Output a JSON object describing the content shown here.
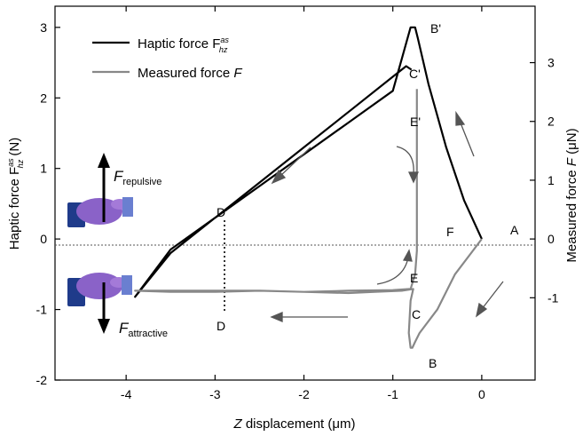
{
  "chart_data": {
    "type": "line",
    "xlabel_var": "Z",
    "xlabel_rest": " displacement (μm)",
    "ylabel_left": "Haptic force F",
    "ylabel_left_sup": "as",
    "ylabel_left_sub": "hz",
    "ylabel_left_unit": " (N)",
    "ylabel_right_pre": "Measured force ",
    "ylabel_right_var": "F",
    "ylabel_right_unit": " (μN)",
    "xlim": [
      -4.8,
      0.6
    ],
    "ylim_left": [
      -2,
      3.3
    ],
    "ylim_right": [
      -2.4,
      3.96
    ],
    "xticks": [
      -4,
      -3,
      -2,
      -1,
      0
    ],
    "yticks_left": [
      -2,
      -1,
      0,
      1,
      2,
      3
    ],
    "yticks_right": [
      -1,
      0,
      1,
      2,
      3
    ],
    "legend": {
      "haptic_label": "Haptic force F",
      "haptic_sup": "as",
      "haptic_sub": "hz",
      "measured_label": "Measured force ",
      "measured_var": "F",
      "placement": "top-left"
    },
    "series": [
      {
        "name": "Haptic force",
        "color": "#000000",
        "axis": "left",
        "x": [
          0,
          -0.2,
          -0.4,
          -0.6,
          -0.72,
          -0.75,
          -0.8,
          -1.0,
          -1.5,
          -2.0,
          -2.5,
          -3.0,
          -3.5,
          -3.9,
          -3.5,
          -3.0,
          -2.5,
          -2.0,
          -1.5,
          -1.0,
          -0.85,
          -0.79
        ],
        "y": [
          0,
          0.55,
          1.3,
          2.2,
          2.85,
          3.0,
          3.0,
          2.1,
          1.65,
          1.2,
          0.75,
          0.3,
          -0.15,
          -0.82,
          -0.2,
          0.3,
          0.8,
          1.3,
          1.8,
          2.3,
          2.45,
          2.4
        ]
      },
      {
        "name": "Measured force",
        "color": "#888888",
        "axis": "right",
        "x": [
          0,
          -0.1,
          -0.3,
          -0.5,
          -0.7,
          -0.75,
          -0.78,
          -0.8,
          -0.82,
          -0.8,
          -0.77,
          -0.9,
          -1.2,
          -1.5,
          -2.0,
          -2.5,
          -3.0,
          -3.5,
          -3.9,
          -3.5,
          -3.0,
          -2.5,
          -2.0,
          -1.5,
          -1.0,
          -0.8,
          -0.75,
          -0.73,
          -0.73
        ],
        "y": [
          0,
          -0.2,
          -0.6,
          -1.2,
          -1.6,
          -1.75,
          -1.85,
          -1.85,
          -1.6,
          -1.05,
          -0.85,
          -0.88,
          -0.9,
          -0.92,
          -0.9,
          -0.88,
          -0.88,
          -0.88,
          -0.88,
          -0.9,
          -0.9,
          -0.88,
          -0.9,
          -0.88,
          -0.87,
          -0.85,
          -0.6,
          -0.2,
          2.55
        ]
      }
    ],
    "point_labels": [
      "A",
      "B",
      "B'",
      "C",
      "C'",
      "D",
      "D'",
      "E",
      "E'",
      "F"
    ],
    "annotations": {
      "repulsive_var": "F",
      "repulsive_sub": "repulsive",
      "attractive_var": "F",
      "attractive_sub": "attractive"
    }
  }
}
